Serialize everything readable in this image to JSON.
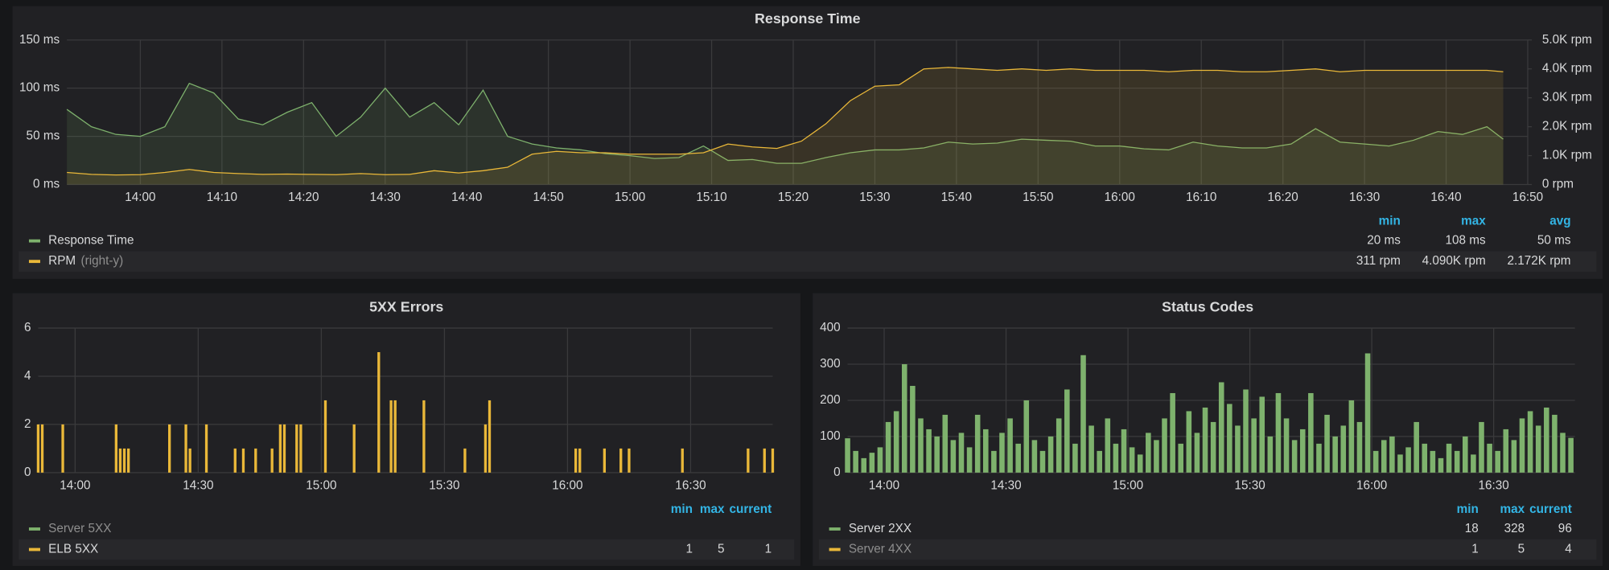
{
  "chart_data": [
    {
      "type": "line",
      "title": "Response Time",
      "x": [
        "13:51",
        "13:54",
        "13:57",
        "14:00",
        "14:03",
        "14:06",
        "14:09",
        "14:12",
        "14:15",
        "14:18",
        "14:21",
        "14:24",
        "14:27",
        "14:30",
        "14:33",
        "14:36",
        "14:39",
        "14:42",
        "14:45",
        "14:48",
        "14:51",
        "14:54",
        "14:57",
        "15:00",
        "15:03",
        "15:06",
        "15:09",
        "15:12",
        "15:15",
        "15:18",
        "15:21",
        "15:24",
        "15:27",
        "15:30",
        "15:33",
        "15:36",
        "15:39",
        "15:42",
        "15:45",
        "15:48",
        "15:51",
        "15:54",
        "15:57",
        "16:00",
        "16:03",
        "16:06",
        "16:09",
        "16:12",
        "16:15",
        "16:18",
        "16:21",
        "16:24",
        "16:27",
        "16:30",
        "16:33",
        "16:36",
        "16:39",
        "16:42",
        "16:45",
        "16:47"
      ],
      "series": [
        {
          "name": "Response Time",
          "color": "#7eb26d",
          "values": [
            78,
            60,
            52,
            50,
            60,
            105,
            95,
            68,
            62,
            75,
            85,
            50,
            70,
            100,
            70,
            85,
            62,
            98,
            50,
            42,
            38,
            36,
            32,
            30,
            27,
            28,
            40,
            25,
            26,
            22,
            22,
            28,
            33,
            36,
            36,
            38,
            44,
            42,
            43,
            47,
            46,
            45,
            40,
            40,
            37,
            36,
            44,
            40,
            38,
            38,
            42,
            58,
            44,
            42,
            40,
            46,
            55,
            52,
            60,
            47
          ],
          "stats": [
            "20 ms",
            "108 ms",
            "50 ms"
          ]
        },
        {
          "name": "RPM",
          "note": "(right-y)",
          "color": "#eab839",
          "axis": "y2",
          "values": [
            420,
            350,
            330,
            340,
            420,
            520,
            420,
            380,
            350,
            360,
            350,
            340,
            380,
            340,
            350,
            480,
            400,
            480,
            600,
            1050,
            1150,
            1100,
            1100,
            1050,
            1050,
            1050,
            1100,
            1400,
            1300,
            1250,
            1500,
            2100,
            2900,
            3400,
            3450,
            4000,
            4050,
            4000,
            3950,
            4000,
            3950,
            4000,
            3950,
            3950,
            3950,
            3900,
            3950,
            3950,
            3900,
            3900,
            3950,
            4000,
            3900,
            3950,
            3950,
            3950,
            3950,
            3950,
            3950,
            3900
          ],
          "stats": [
            "311 rpm",
            "4.090K rpm",
            "2.172K rpm"
          ]
        }
      ],
      "xlim": [
        "13:51",
        "16:50"
      ],
      "xticks": [
        "14:00",
        "14:10",
        "14:20",
        "14:30",
        "14:40",
        "14:50",
        "15:00",
        "15:10",
        "15:20",
        "15:30",
        "15:40",
        "15:50",
        "16:00",
        "16:10",
        "16:20",
        "16:30",
        "16:40",
        "16:50"
      ],
      "ylim": [
        0,
        150
      ],
      "yticks": [
        {
          "value": 0,
          "label": "0 ms"
        },
        {
          "value": 50,
          "label": "50 ms"
        },
        {
          "value": 100,
          "label": "100 ms"
        },
        {
          "value": 150,
          "label": "150 ms"
        }
      ],
      "y2lim": [
        0,
        5000
      ],
      "y2ticks": [
        {
          "value": 0,
          "label": "0 rpm"
        },
        {
          "value": 1000,
          "label": "1.0K rpm"
        },
        {
          "value": 2000,
          "label": "2.0K rpm"
        },
        {
          "value": 3000,
          "label": "3.0K rpm"
        },
        {
          "value": 4000,
          "label": "4.0K rpm"
        },
        {
          "value": 5000,
          "label": "5.0K rpm"
        }
      ],
      "legend_columns": [
        "min",
        "max",
        "avg"
      ],
      "grid": true
    },
    {
      "type": "bar",
      "title": "5XX Errors",
      "x": [
        "13:51",
        "13:52",
        "13:57",
        "14:10",
        "14:11",
        "14:12",
        "14:13",
        "14:23",
        "14:27",
        "14:28",
        "14:32",
        "14:39",
        "14:41",
        "14:44",
        "14:48",
        "14:50",
        "14:51",
        "14:54",
        "14:55",
        "15:01",
        "15:08",
        "15:14",
        "15:17",
        "15:18",
        "15:25",
        "15:35",
        "15:40",
        "15:41",
        "16:02",
        "16:03",
        "16:09",
        "16:13",
        "16:15",
        "16:28",
        "16:44",
        "16:48",
        "16:50"
      ],
      "series": [
        {
          "name": "Server 5XX",
          "color": "#7eb26d"
        },
        {
          "name": "ELB 5XX",
          "color": "#eab839",
          "values": [
            2,
            2,
            2,
            2,
            1,
            1,
            1,
            2,
            2,
            1,
            2,
            1,
            1,
            1,
            1,
            2,
            2,
            2,
            2,
            3,
            2,
            5,
            3,
            3,
            3,
            1,
            2,
            3,
            1,
            1,
            1,
            1,
            1,
            1,
            1,
            1,
            1
          ],
          "stats": [
            1,
            5,
            1
          ]
        }
      ],
      "xlim": [
        "13:51",
        "16:50"
      ],
      "xticks": [
        "14:00",
        "14:30",
        "15:00",
        "15:30",
        "16:00",
        "16:30"
      ],
      "ylim": [
        0,
        6
      ],
      "yticks": [
        0,
        2,
        4,
        6
      ],
      "legend_columns": [
        "min",
        "max",
        "current"
      ],
      "grid": true
    },
    {
      "type": "bar",
      "title": "Status Codes",
      "x": [
        "13:51",
        "13:53",
        "13:55",
        "13:57",
        "13:59",
        "14:01",
        "14:03",
        "14:05",
        "14:07",
        "14:09",
        "14:11",
        "14:13",
        "14:15",
        "14:17",
        "14:19",
        "14:21",
        "14:23",
        "14:25",
        "14:27",
        "14:29",
        "14:31",
        "14:33",
        "14:35",
        "14:37",
        "14:39",
        "14:41",
        "14:43",
        "14:45",
        "14:47",
        "14:49",
        "14:51",
        "14:53",
        "14:55",
        "14:57",
        "14:59",
        "15:01",
        "15:03",
        "15:05",
        "15:07",
        "15:09",
        "15:11",
        "15:13",
        "15:15",
        "15:17",
        "15:19",
        "15:21",
        "15:23",
        "15:25",
        "15:27",
        "15:29",
        "15:31",
        "15:33",
        "15:35",
        "15:37",
        "15:39",
        "15:41",
        "15:43",
        "15:45",
        "15:47",
        "15:49",
        "15:51",
        "15:53",
        "15:55",
        "15:57",
        "15:59",
        "16:01",
        "16:03",
        "16:05",
        "16:07",
        "16:09",
        "16:11",
        "16:13",
        "16:15",
        "16:17",
        "16:19",
        "16:21",
        "16:23",
        "16:25",
        "16:27",
        "16:29",
        "16:31",
        "16:33",
        "16:35",
        "16:37",
        "16:39",
        "16:41",
        "16:43",
        "16:45",
        "16:47",
        "16:49"
      ],
      "series": [
        {
          "name": "Server 2XX",
          "color": "#7eb26d",
          "values": [
            95,
            60,
            40,
            55,
            70,
            140,
            170,
            300,
            240,
            150,
            120,
            100,
            160,
            90,
            110,
            70,
            160,
            120,
            60,
            110,
            150,
            80,
            200,
            90,
            60,
            100,
            150,
            230,
            80,
            325,
            130,
            60,
            150,
            80,
            120,
            70,
            50,
            110,
            90,
            150,
            220,
            80,
            170,
            110,
            180,
            140,
            250,
            190,
            130,
            230,
            150,
            210,
            100,
            220,
            150,
            90,
            120,
            220,
            80,
            160,
            100,
            130,
            200,
            140,
            330,
            60,
            90,
            100,
            50,
            70,
            140,
            80,
            60,
            40,
            80,
            60,
            100,
            50,
            140,
            80,
            60,
            120,
            90,
            150,
            170,
            130,
            180,
            160,
            110,
            96
          ],
          "stats": [
            18,
            328,
            96
          ]
        },
        {
          "name": "Server 4XX",
          "color": "#eab839",
          "stats": [
            1,
            5,
            4
          ]
        }
      ],
      "xlim": [
        "13:51",
        "16:50"
      ],
      "xticks": [
        "14:00",
        "14:30",
        "15:00",
        "15:30",
        "16:00",
        "16:30"
      ],
      "ylim": [
        0,
        400
      ],
      "yticks": [
        0,
        100,
        200,
        300,
        400
      ],
      "legend_columns": [
        "min",
        "max",
        "current"
      ],
      "grid": true
    }
  ]
}
